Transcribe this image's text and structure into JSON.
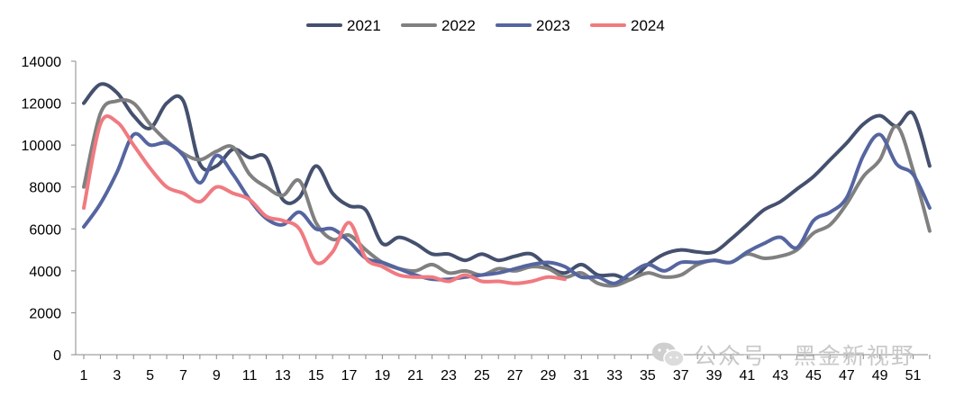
{
  "chart_data": {
    "type": "line",
    "title": "",
    "xlabel": "",
    "ylabel": "",
    "ylim": [
      0,
      14000
    ],
    "yticks": [
      0,
      2000,
      4000,
      6000,
      8000,
      10000,
      12000,
      14000
    ],
    "xlim": [
      1,
      52
    ],
    "xticks": [
      1,
      3,
      5,
      7,
      9,
      11,
      13,
      15,
      17,
      19,
      21,
      23,
      25,
      27,
      29,
      31,
      33,
      35,
      37,
      39,
      41,
      43,
      45,
      47,
      49,
      51
    ],
    "legend_position": "top-center",
    "series": [
      {
        "name": "2021",
        "color": "#44506e",
        "values": [
          12000,
          12900,
          12500,
          11400,
          10800,
          12000,
          12100,
          9100,
          9000,
          9800,
          9400,
          9400,
          7400,
          7500,
          9000,
          7700,
          7100,
          6900,
          5300,
          5600,
          5300,
          4800,
          4800,
          4500,
          4800,
          4500,
          4700,
          4800,
          4200,
          3900,
          4300,
          3800,
          3800,
          3600,
          4300,
          4800,
          5000,
          4900,
          4900,
          5500,
          6200,
          6900,
          7300,
          7900,
          8500,
          9300,
          10100,
          11000,
          11400,
          10900,
          11500,
          9000
        ]
      },
      {
        "name": "2022",
        "color": "#808080",
        "values": [
          8000,
          11500,
          12100,
          12000,
          11000,
          10200,
          9600,
          9300,
          9700,
          9900,
          8600,
          8000,
          7600,
          8300,
          6300,
          5500,
          5700,
          5000,
          4400,
          4100,
          4000,
          4300,
          3900,
          4000,
          3800,
          4100,
          4000,
          4200,
          4100,
          3700,
          3900,
          3400,
          3300,
          3600,
          3900,
          3700,
          3800,
          4300,
          4500,
          4400,
          4800,
          4600,
          4700,
          5000,
          5800,
          6200,
          7200,
          8500,
          9300,
          10900,
          8800,
          5900
        ]
      },
      {
        "name": "2023",
        "color": "#5565a0",
        "values": [
          6100,
          7200,
          8700,
          10500,
          10000,
          10100,
          9500,
          8200,
          9500,
          8600,
          7400,
          6500,
          6200,
          6800,
          6000,
          6000,
          5400,
          4600,
          4400,
          4100,
          3800,
          3600,
          3600,
          3700,
          3800,
          3900,
          4100,
          4300,
          4400,
          4200,
          3700,
          3700,
          3400,
          3900,
          4300,
          4000,
          4400,
          4400,
          4500,
          4400,
          4900,
          5300,
          5600,
          5100,
          6400,
          6800,
          7500,
          9500,
          10500,
          9100,
          8600,
          7000
        ]
      },
      {
        "name": "2024",
        "color": "#f07a80",
        "values": [
          7000,
          11000,
          11100,
          10000,
          8900,
          8000,
          7700,
          7300,
          8000,
          7700,
          7400,
          6600,
          6400,
          6000,
          4400,
          4900,
          6300,
          4600,
          4200,
          3800,
          3700,
          3700,
          3500,
          3800,
          3500,
          3500,
          3400,
          3500,
          3700,
          3600
        ]
      }
    ]
  },
  "watermark": {
    "icon": "wechat-icon",
    "text": "公众号 · 黑金新视野"
  }
}
